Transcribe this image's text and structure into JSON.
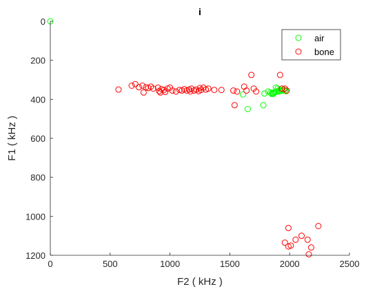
{
  "chart_data": {
    "type": "scatter",
    "title": "i",
    "xlabel": "F2 ( kHz )",
    "ylabel": "F1 ( kHz )",
    "xlim": [
      0,
      2500
    ],
    "ylim": [
      0,
      1200
    ],
    "y_reversed": true,
    "xticks": [
      0,
      500,
      1000,
      1500,
      2000,
      2500
    ],
    "yticks": [
      0,
      200,
      400,
      600,
      800,
      1000,
      1200
    ],
    "grid": false,
    "legend_position": "top-right",
    "series": [
      {
        "name": "air",
        "color": "#00ff00",
        "marker": "circle-open",
        "points": [
          [
            0,
            0
          ],
          [
            1610,
            375
          ],
          [
            1650,
            450
          ],
          [
            1780,
            430
          ],
          [
            1790,
            370
          ],
          [
            1820,
            360
          ],
          [
            1840,
            365
          ],
          [
            1850,
            370
          ],
          [
            1860,
            368
          ],
          [
            1870,
            365
          ],
          [
            1880,
            362
          ],
          [
            1885,
            340
          ],
          [
            1890,
            360
          ],
          [
            1900,
            345
          ],
          [
            1905,
            355
          ],
          [
            1910,
            360
          ],
          [
            1920,
            358
          ],
          [
            1930,
            352
          ],
          [
            1940,
            355
          ],
          [
            1950,
            350
          ],
          [
            1960,
            355
          ],
          [
            1970,
            358
          ],
          [
            1850,
            372
          ],
          [
            1865,
            372
          ]
        ]
      },
      {
        "name": "bone",
        "color": "#ff0000",
        "marker": "circle-open",
        "points": [
          [
            570,
            350
          ],
          [
            680,
            330
          ],
          [
            710,
            322
          ],
          [
            740,
            338
          ],
          [
            770,
            330
          ],
          [
            780,
            365
          ],
          [
            800,
            338
          ],
          [
            820,
            342
          ],
          [
            840,
            335
          ],
          [
            860,
            345
          ],
          [
            900,
            340
          ],
          [
            910,
            358
          ],
          [
            920,
            365
          ],
          [
            930,
            348
          ],
          [
            950,
            352
          ],
          [
            960,
            362
          ],
          [
            980,
            345
          ],
          [
            1000,
            340
          ],
          [
            1020,
            355
          ],
          [
            1050,
            360
          ],
          [
            1080,
            352
          ],
          [
            1100,
            355
          ],
          [
            1120,
            348
          ],
          [
            1140,
            355
          ],
          [
            1160,
            350
          ],
          [
            1170,
            360
          ],
          [
            1180,
            345
          ],
          [
            1200,
            355
          ],
          [
            1220,
            350
          ],
          [
            1240,
            358
          ],
          [
            1250,
            342
          ],
          [
            1260,
            352
          ],
          [
            1280,
            340
          ],
          [
            1300,
            350
          ],
          [
            1320,
            345
          ],
          [
            1370,
            352
          ],
          [
            1430,
            352
          ],
          [
            1530,
            355
          ],
          [
            1540,
            430
          ],
          [
            1560,
            360
          ],
          [
            1620,
            335
          ],
          [
            1640,
            355
          ],
          [
            1680,
            275
          ],
          [
            1700,
            345
          ],
          [
            1720,
            360
          ],
          [
            1920,
            275
          ],
          [
            1935,
            345
          ],
          [
            1960,
            345
          ],
          [
            1975,
            355
          ],
          [
            1990,
            1060
          ],
          [
            2240,
            1050
          ],
          [
            2100,
            1100
          ],
          [
            2150,
            1120
          ],
          [
            2050,
            1120
          ],
          [
            1960,
            1135
          ],
          [
            1990,
            1155
          ],
          [
            2010,
            1150
          ],
          [
            2180,
            1160
          ],
          [
            2160,
            1195
          ]
        ]
      }
    ]
  }
}
